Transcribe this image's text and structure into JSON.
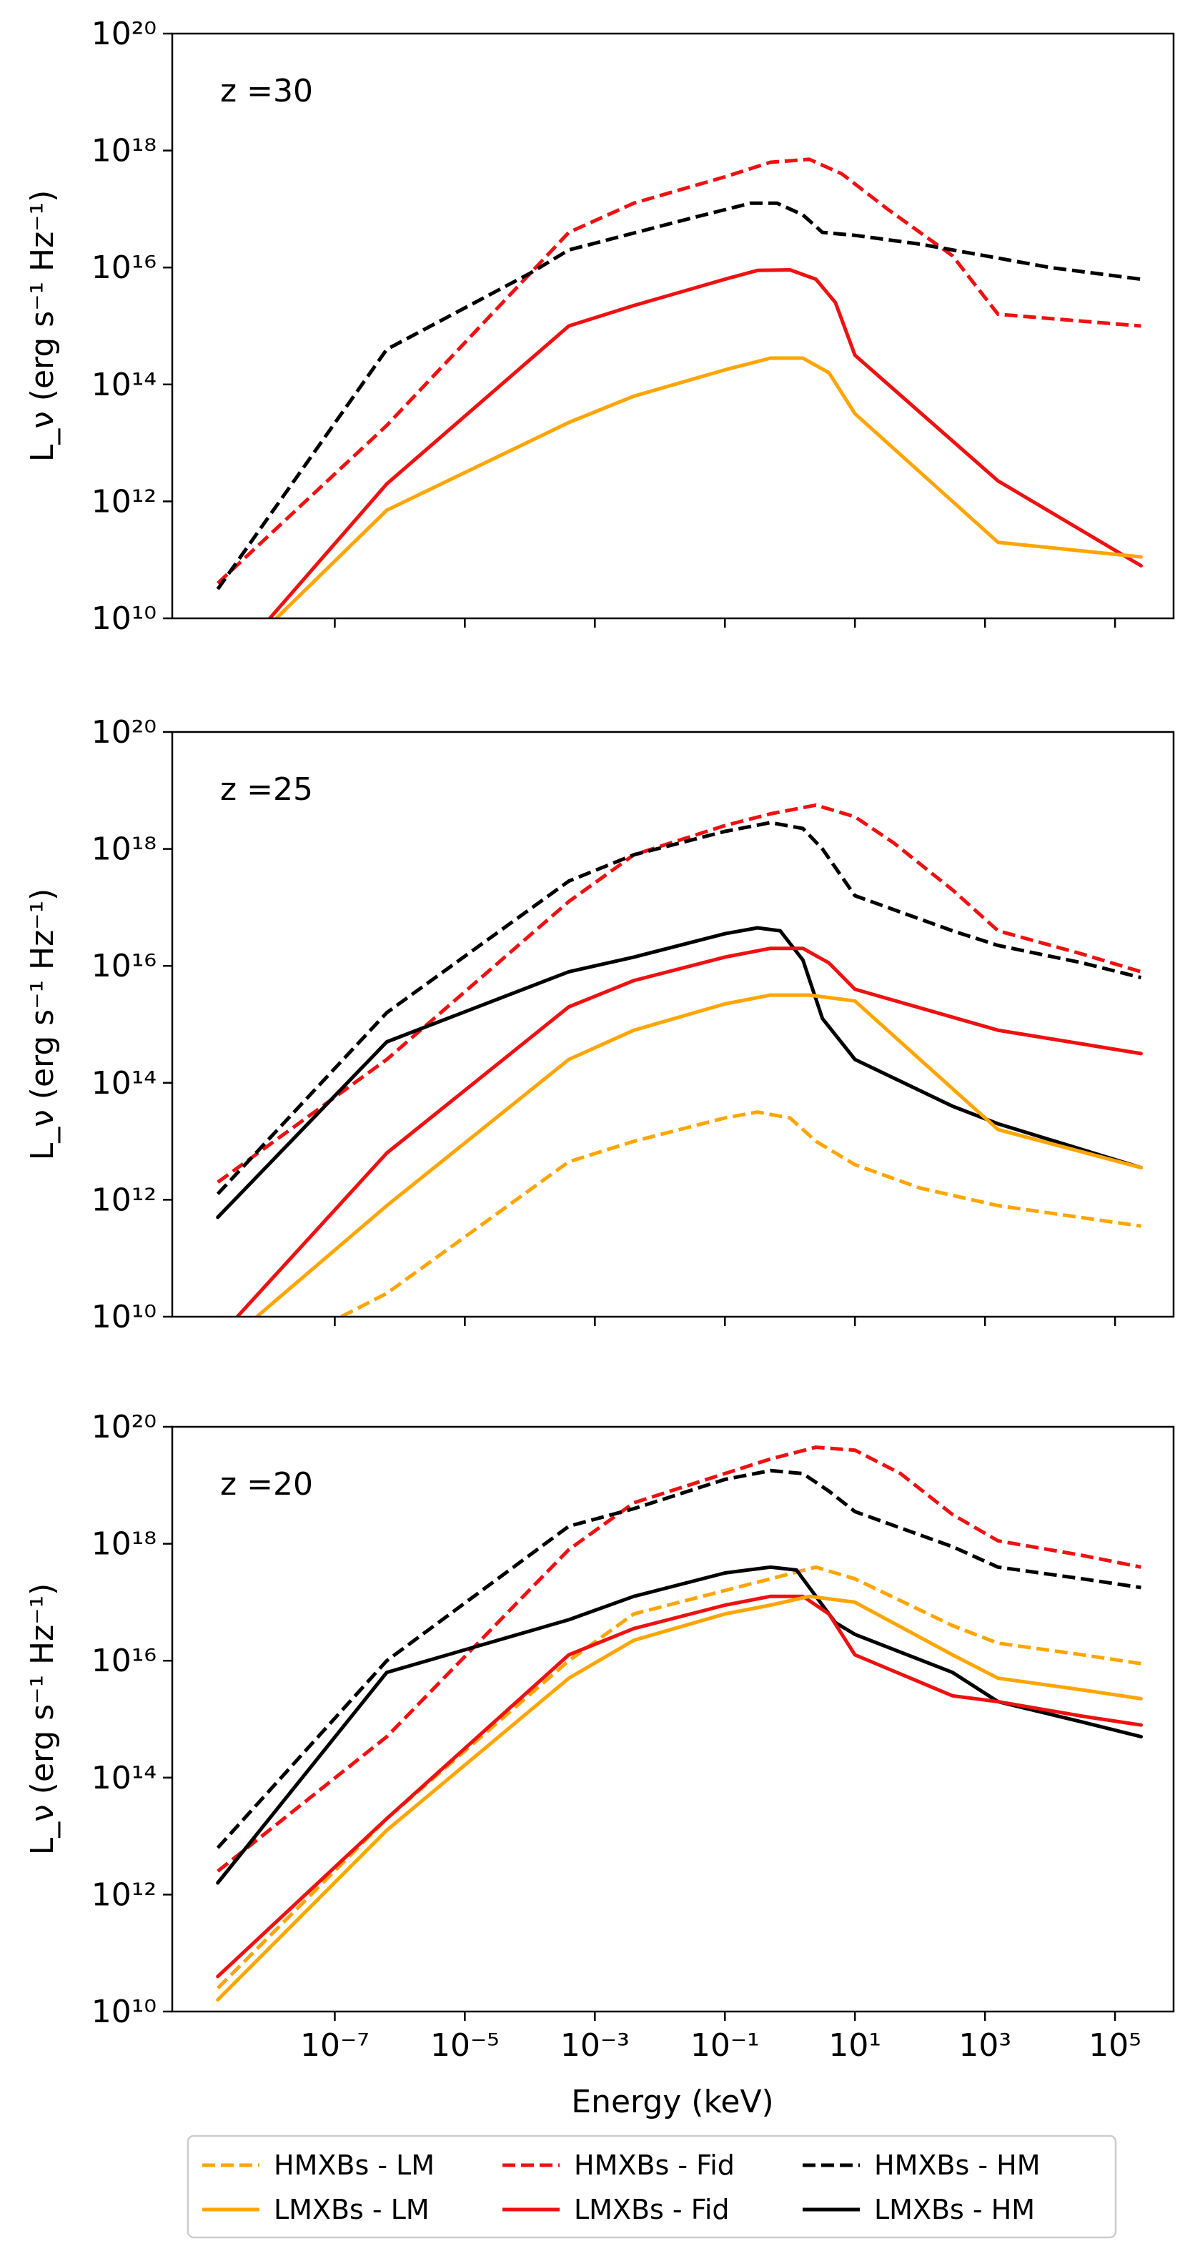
{
  "colors": {
    "orange": "#FFA500",
    "red": "#EE1111",
    "black": "#000000"
  },
  "chart_data": {
    "type": "line",
    "xlabel": "Energy (keV)",
    "ylabel": "L_ν (erg s⁻¹ Hz⁻¹)",
    "xscale": "log",
    "yscale": "log",
    "xlim_log10": [
      -9.5,
      5.9
    ],
    "ylim_log10": [
      10,
      20
    ],
    "x_ticks_log10": [
      -7,
      -5,
      -3,
      -1,
      1,
      3,
      5
    ],
    "y_ticks_log10": [
      10,
      12,
      14,
      16,
      18,
      20
    ],
    "legend": [
      {
        "label": "HMXBs - LM",
        "color": "orange",
        "dash": true
      },
      {
        "label": "LMXBs - LM",
        "color": "orange",
        "dash": false
      },
      {
        "label": "HMXBs - Fid",
        "color": "red",
        "dash": true
      },
      {
        "label": "LMXBs - Fid",
        "color": "red",
        "dash": false
      },
      {
        "label": "HMXBs - HM",
        "color": "black",
        "dash": true
      },
      {
        "label": "LMXBs - HM",
        "color": "black",
        "dash": false
      }
    ],
    "panels": [
      {
        "label": "z =30",
        "series": [
          {
            "name": "HMXBs - Fid",
            "color": "red",
            "dash": true,
            "points": [
              [
                -8.8,
                10.6
              ],
              [
                -6.2,
                13.3
              ],
              [
                -3.4,
                16.6
              ],
              [
                -2.4,
                17.1
              ],
              [
                -1,
                17.55
              ],
              [
                -0.3,
                17.8
              ],
              [
                0.3,
                17.85
              ],
              [
                0.8,
                17.6
              ],
              [
                1.5,
                17
              ],
              [
                2.5,
                16.2
              ],
              [
                3.2,
                15.2
              ],
              [
                5.4,
                15.0
              ]
            ]
          },
          {
            "name": "HMXBs - HM",
            "color": "black",
            "dash": true,
            "points": [
              [
                -8.8,
                10.5
              ],
              [
                -6.2,
                14.6
              ],
              [
                -4,
                15.9
              ],
              [
                -3.4,
                16.3
              ],
              [
                -1.5,
                16.85
              ],
              [
                -0.6,
                17.1
              ],
              [
                -0.2,
                17.1
              ],
              [
                0.2,
                16.9
              ],
              [
                0.5,
                16.6
              ],
              [
                1,
                16.55
              ],
              [
                2,
                16.4
              ],
              [
                3,
                16.2
              ],
              [
                4,
                16.0
              ],
              [
                5.4,
                15.8
              ]
            ]
          },
          {
            "name": "LMXBs - Fid",
            "color": "red",
            "dash": false,
            "points": [
              [
                -8,
                10
              ],
              [
                -6.2,
                12.3
              ],
              [
                -3.4,
                15.0
              ],
              [
                -2.4,
                15.35
              ],
              [
                -1,
                15.8
              ],
              [
                -0.5,
                15.95
              ],
              [
                0,
                15.96
              ],
              [
                0.4,
                15.8
              ],
              [
                0.7,
                15.4
              ],
              [
                1,
                14.5
              ],
              [
                3.2,
                12.35
              ],
              [
                5.4,
                10.9
              ]
            ]
          },
          {
            "name": "LMXBs - LM",
            "color": "orange",
            "dash": false,
            "points": [
              [
                -7.9,
                10
              ],
              [
                -6.2,
                11.85
              ],
              [
                -3.4,
                13.35
              ],
              [
                -2.4,
                13.8
              ],
              [
                -1,
                14.25
              ],
              [
                -0.3,
                14.45
              ],
              [
                0.2,
                14.45
              ],
              [
                0.6,
                14.2
              ],
              [
                1,
                13.5
              ],
              [
                3.2,
                11.3
              ],
              [
                5.4,
                11.05
              ]
            ]
          }
        ]
      },
      {
        "label": "z =25",
        "series": [
          {
            "name": "HMXBs - Fid",
            "color": "red",
            "dash": true,
            "points": [
              [
                -8.8,
                12.3
              ],
              [
                -6.2,
                14.4
              ],
              [
                -3.4,
                17.1
              ],
              [
                -2.4,
                17.9
              ],
              [
                -1,
                18.4
              ],
              [
                -0.3,
                18.6
              ],
              [
                0.4,
                18.75
              ],
              [
                1,
                18.55
              ],
              [
                1.6,
                18.1
              ],
              [
                2.5,
                17.3
              ],
              [
                3.2,
                16.6
              ],
              [
                4.5,
                16.2
              ],
              [
                5.4,
                15.9
              ]
            ]
          },
          {
            "name": "HMXBs - HM",
            "color": "black",
            "dash": true,
            "points": [
              [
                -8.8,
                12.1
              ],
              [
                -6.2,
                15.2
              ],
              [
                -3.4,
                17.45
              ],
              [
                -2.4,
                17.9
              ],
              [
                -1,
                18.3
              ],
              [
                -0.3,
                18.45
              ],
              [
                0.2,
                18.35
              ],
              [
                0.5,
                18.0
              ],
              [
                1,
                17.2
              ],
              [
                2.5,
                16.6
              ],
              [
                3.2,
                16.35
              ],
              [
                4.5,
                16.05
              ],
              [
                5.4,
                15.8
              ]
            ]
          },
          {
            "name": "LMXBs - HM",
            "color": "black",
            "dash": false,
            "points": [
              [
                -8.8,
                11.7
              ],
              [
                -6.2,
                14.7
              ],
              [
                -3.4,
                15.9
              ],
              [
                -2.4,
                16.15
              ],
              [
                -1,
                16.55
              ],
              [
                -0.5,
                16.65
              ],
              [
                -0.15,
                16.6
              ],
              [
                0.2,
                16.1
              ],
              [
                0.5,
                15.1
              ],
              [
                1,
                14.4
              ],
              [
                2.5,
                13.6
              ],
              [
                3.2,
                13.3
              ],
              [
                5.4,
                12.55
              ]
            ]
          },
          {
            "name": "LMXBs - Fid",
            "color": "red",
            "dash": false,
            "points": [
              [
                -8.5,
                10
              ],
              [
                -6.2,
                12.8
              ],
              [
                -3.4,
                15.3
              ],
              [
                -2.4,
                15.75
              ],
              [
                -1,
                16.15
              ],
              [
                -0.3,
                16.3
              ],
              [
                0.2,
                16.3
              ],
              [
                0.6,
                16.05
              ],
              [
                1,
                15.6
              ],
              [
                3.2,
                14.9
              ],
              [
                5.4,
                14.5
              ]
            ]
          },
          {
            "name": "LMXBs - LM",
            "color": "orange",
            "dash": false,
            "points": [
              [
                -8.2,
                10
              ],
              [
                -6.2,
                11.9
              ],
              [
                -3.4,
                14.4
              ],
              [
                -2.4,
                14.9
              ],
              [
                -1,
                15.35
              ],
              [
                -0.3,
                15.5
              ],
              [
                0.3,
                15.5
              ],
              [
                1,
                15.4
              ],
              [
                3.2,
                13.2
              ],
              [
                5.4,
                12.55
              ]
            ]
          },
          {
            "name": "HMXBs - LM",
            "color": "orange",
            "dash": true,
            "points": [
              [
                -6.9,
                10
              ],
              [
                -6.2,
                10.4
              ],
              [
                -3.4,
                12.65
              ],
              [
                -2.4,
                13
              ],
              [
                -1,
                13.4
              ],
              [
                -0.5,
                13.5
              ],
              [
                0,
                13.4
              ],
              [
                0.4,
                13.0
              ],
              [
                1,
                12.6
              ],
              [
                2,
                12.2
              ],
              [
                3.2,
                11.9
              ],
              [
                5.4,
                11.55
              ]
            ]
          }
        ]
      },
      {
        "label": "z =20",
        "series": [
          {
            "name": "HMXBs - Fid",
            "color": "red",
            "dash": true,
            "points": [
              [
                -8.8,
                12.4
              ],
              [
                -6.2,
                14.7
              ],
              [
                -3.4,
                17.9
              ],
              [
                -2.4,
                18.7
              ],
              [
                -1,
                19.2
              ],
              [
                -0.3,
                19.45
              ],
              [
                0.4,
                19.65
              ],
              [
                1,
                19.6
              ],
              [
                1.7,
                19.2
              ],
              [
                2.5,
                18.5
              ],
              [
                3.2,
                18.05
              ],
              [
                4.5,
                17.8
              ],
              [
                5.4,
                17.6
              ]
            ]
          },
          {
            "name": "HMXBs - HM",
            "color": "black",
            "dash": true,
            "points": [
              [
                -8.8,
                12.8
              ],
              [
                -6.2,
                16.0
              ],
              [
                -3.4,
                18.3
              ],
              [
                -2.4,
                18.6
              ],
              [
                -1,
                19.1
              ],
              [
                -0.3,
                19.25
              ],
              [
                0.2,
                19.2
              ],
              [
                0.6,
                18.9
              ],
              [
                1,
                18.55
              ],
              [
                2.5,
                17.95
              ],
              [
                3.2,
                17.6
              ],
              [
                4.5,
                17.4
              ],
              [
                5.4,
                17.25
              ]
            ]
          },
          {
            "name": "HMXBs - LM",
            "color": "orange",
            "dash": true,
            "points": [
              [
                -8.8,
                10.4
              ],
              [
                -6.2,
                13.3
              ],
              [
                -3.4,
                16.0
              ],
              [
                -2.4,
                16.8
              ],
              [
                -1,
                17.2
              ],
              [
                -0.3,
                17.4
              ],
              [
                0.4,
                17.6
              ],
              [
                1,
                17.4
              ],
              [
                2.5,
                16.6
              ],
              [
                3.2,
                16.3
              ],
              [
                4.5,
                16.1
              ],
              [
                5.4,
                15.95
              ]
            ]
          },
          {
            "name": "LMXBs - HM",
            "color": "black",
            "dash": false,
            "points": [
              [
                -8.8,
                12.2
              ],
              [
                -6.2,
                15.8
              ],
              [
                -3.4,
                16.7
              ],
              [
                -2.4,
                17.1
              ],
              [
                -1,
                17.5
              ],
              [
                -0.3,
                17.6
              ],
              [
                0.1,
                17.55
              ],
              [
                0.4,
                17.1
              ],
              [
                0.7,
                16.65
              ],
              [
                1,
                16.45
              ],
              [
                2.5,
                15.8
              ],
              [
                3.2,
                15.3
              ],
              [
                4.5,
                14.95
              ],
              [
                5.4,
                14.7
              ]
            ]
          },
          {
            "name": "LMXBs - Fid",
            "color": "red",
            "dash": false,
            "points": [
              [
                -8.8,
                10.6
              ],
              [
                -6.2,
                13.3
              ],
              [
                -3.4,
                16.1
              ],
              [
                -2.4,
                16.55
              ],
              [
                -1,
                16.95
              ],
              [
                -0.3,
                17.1
              ],
              [
                0.2,
                17.1
              ],
              [
                0.6,
                16.8
              ],
              [
                1,
                16.1
              ],
              [
                2.5,
                15.4
              ],
              [
                3.2,
                15.3
              ],
              [
                4.5,
                15.05
              ],
              [
                5.4,
                14.9
              ]
            ]
          },
          {
            "name": "LMXBs - LM",
            "color": "orange",
            "dash": false,
            "points": [
              [
                -8.8,
                10.2
              ],
              [
                -6.2,
                13.1
              ],
              [
                -3.4,
                15.7
              ],
              [
                -2.4,
                16.35
              ],
              [
                -1,
                16.8
              ],
              [
                -0.3,
                16.95
              ],
              [
                0.3,
                17.1
              ],
              [
                1,
                17.0
              ],
              [
                2.5,
                16.1
              ],
              [
                3.2,
                15.7
              ],
              [
                4.5,
                15.5
              ],
              [
                5.4,
                15.35
              ]
            ]
          }
        ]
      }
    ]
  }
}
